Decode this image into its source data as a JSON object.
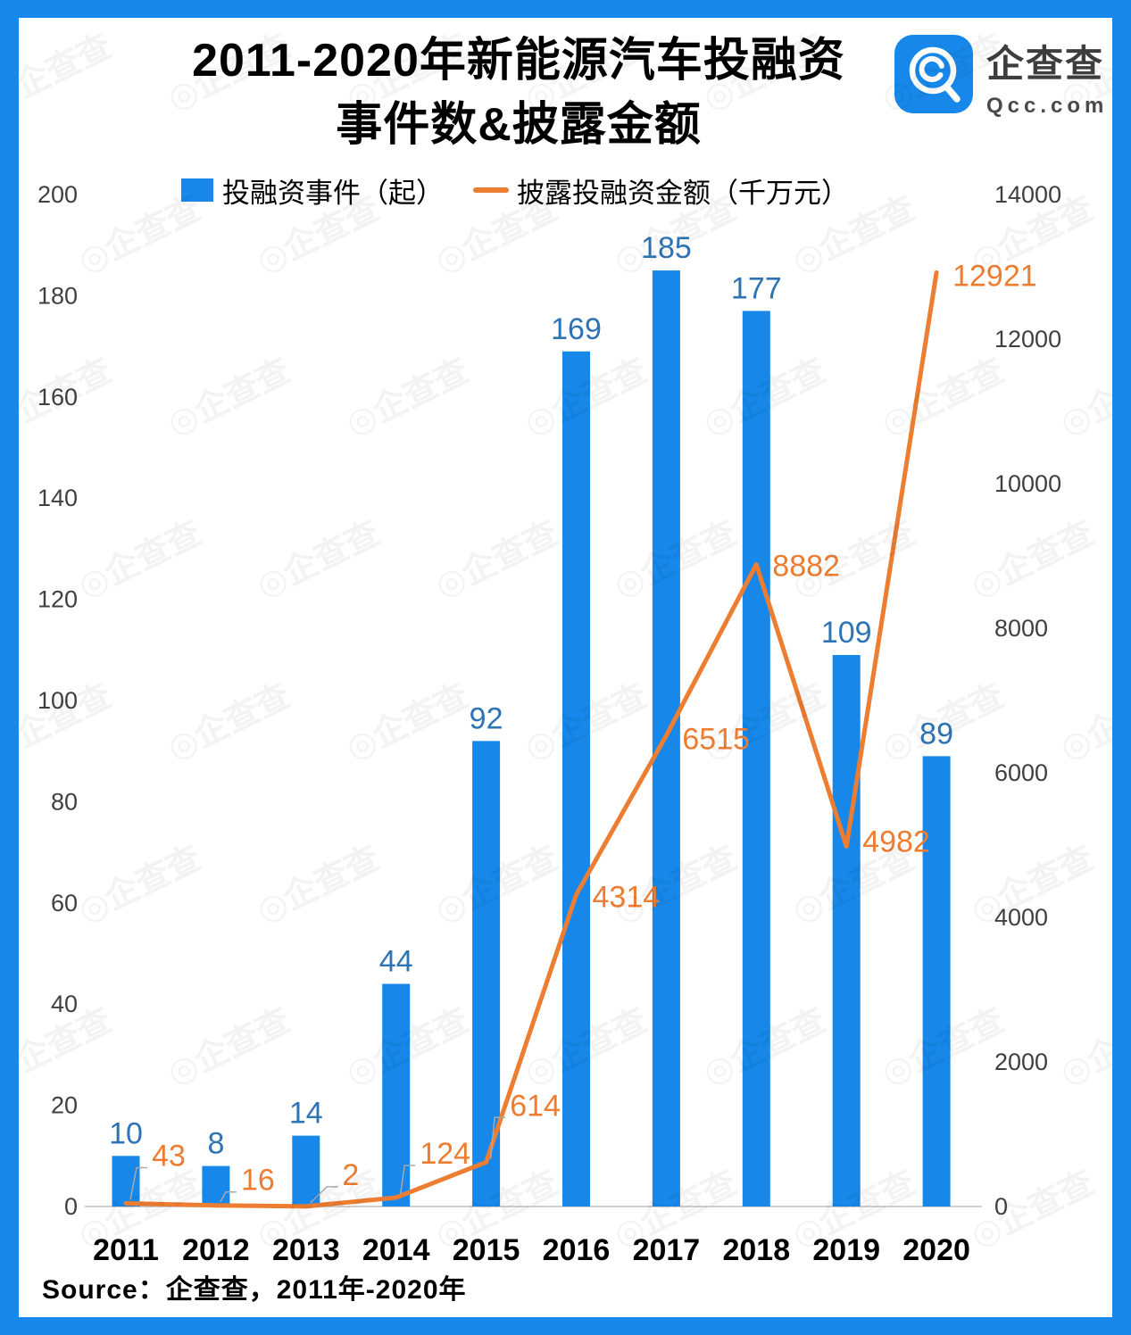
{
  "title": {
    "line1": "2011-2020年新能源汽车投融资",
    "line2": "事件数&披露金额"
  },
  "logo": {
    "name": "企查查",
    "domain": "Qcc.com"
  },
  "legend": [
    {
      "label": "投融资事件（起）",
      "type": "bar",
      "color": "#1788E9"
    },
    {
      "label": "披露投融资金额（千万元）",
      "type": "line",
      "color": "#ED7D31"
    }
  ],
  "source_note": "Source：企查查，2011年-2020年",
  "watermark": {
    "text": "◎企查查"
  },
  "chart_data": {
    "type": "bar+line",
    "categories": [
      "2011",
      "2012",
      "2013",
      "2014",
      "2015",
      "2016",
      "2017",
      "2018",
      "2019",
      "2020"
    ],
    "series": [
      {
        "name": "投融资事件（起）",
        "chart": "bar",
        "axis": "left",
        "color": "#1788E9",
        "label_color": "#2E74B5",
        "values": [
          10,
          8,
          14,
          44,
          92,
          169,
          185,
          177,
          109,
          89
        ]
      },
      {
        "name": "披露投融资金额（千万元）",
        "chart": "line",
        "axis": "right",
        "color": "#ED7D31",
        "label_color": "#ED7D31",
        "values": [
          43,
          16,
          2,
          124,
          614,
          4314,
          6515,
          8882,
          4982,
          12921
        ]
      }
    ],
    "left_axis": {
      "min": 0,
      "max": 200,
      "ticks": [
        0,
        20,
        40,
        60,
        80,
        100,
        120,
        140,
        160,
        180,
        200
      ]
    },
    "right_axis": {
      "min": 0,
      "max": 14000,
      "ticks": [
        0,
        2000,
        4000,
        6000,
        8000,
        10000,
        12000,
        14000
      ]
    },
    "grid": false,
    "legend_position": "top",
    "axis_line_color": "#BFBFBF",
    "tick_label_color": "#404040",
    "leader_line_color": "#A9A9A9"
  }
}
